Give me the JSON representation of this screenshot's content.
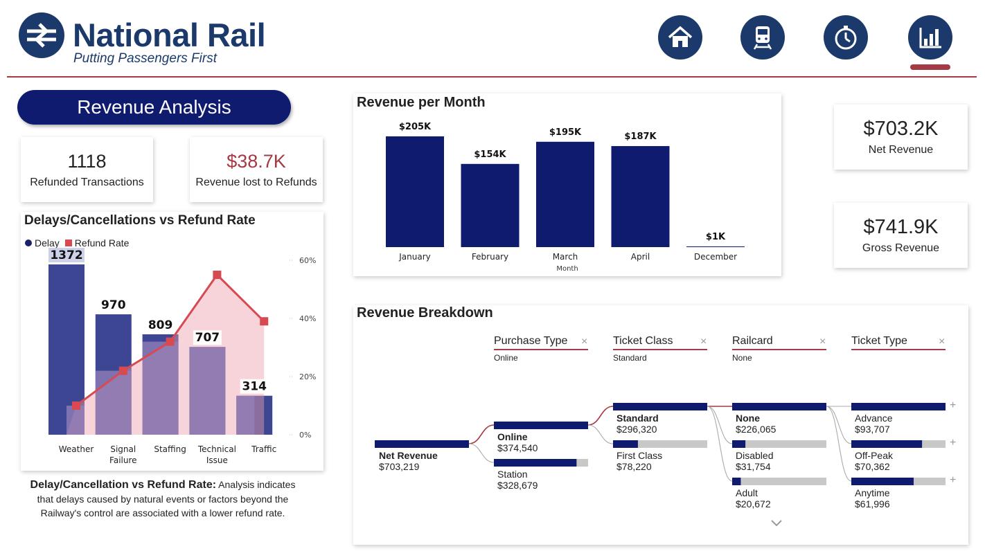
{
  "header": {
    "brand_name": "National Rail",
    "tagline": "Putting Passengers First",
    "nav": [
      "home-icon",
      "train-icon",
      "stopwatch-icon",
      "bar-chart-icon"
    ],
    "active_nav": "bar-chart-icon",
    "colors": {
      "brand_navy": "#1b3a6b",
      "accent_red": "#a33a44",
      "bar_navy": "#0f1b6e"
    }
  },
  "section_title": "Revenue Analysis",
  "kpis": {
    "refunded_transactions": {
      "value": "1118",
      "label": "Refunded Transactions"
    },
    "revenue_lost": {
      "value": "$38.7K",
      "label": "Revenue lost to Refunds"
    },
    "net_revenue": {
      "value": "$703.2K",
      "label": "Net Revenue"
    },
    "gross_revenue": {
      "value": "$741.9K",
      "label": "Gross Revenue"
    }
  },
  "analysis_note": {
    "heading": "Delay/Cancellation vs Refund Rate:",
    "body": "Analysis indicates that delays caused by natural events or factors beyond the Railway's control are associated with a lower refund rate."
  },
  "chart_data": [
    {
      "id": "revenue-per-month",
      "type": "bar",
      "title": "Revenue per Month",
      "xlabel": "Month",
      "categories": [
        "January",
        "February",
        "March",
        "April",
        "December"
      ],
      "values": [
        205,
        154,
        195,
        187,
        1
      ],
      "value_labels": [
        "$205K",
        "$154K",
        "$195K",
        "$187K",
        "$1K"
      ],
      "unit": "$K",
      "ylim": [
        0,
        205
      ],
      "color": "#0f1b6e",
      "grid": false
    },
    {
      "id": "delays-vs-refund",
      "type": "bar",
      "title": "Delays/Cancellations vs Refund Rate",
      "legend": [
        "Delay",
        "Refund Rate"
      ],
      "legend_position": "top-left",
      "categories": [
        "Weather",
        "Signal Failure",
        "Staffing",
        "Technical Issue",
        "Traffic"
      ],
      "category_lines": [
        [
          "Weather"
        ],
        [
          "Signal",
          "Failure"
        ],
        [
          "Staffing"
        ],
        [
          "Technical",
          "Issue"
        ],
        [
          "Traffic"
        ]
      ],
      "series": [
        {
          "name": "Delay",
          "values": [
            1372,
            970,
            809,
            707,
            314
          ],
          "color": "#3d4693"
        },
        {
          "name": "Refund Rate",
          "values": [
            10,
            22,
            32,
            55,
            39
          ],
          "color": "#d84a52",
          "axis": "right",
          "unit": "%"
        }
      ],
      "y2_ticks": [
        "0%",
        "20%",
        "40%",
        "60%"
      ],
      "y2lim": [
        0,
        60
      ]
    }
  ],
  "revenue_breakdown": {
    "title": "Revenue Breakdown",
    "filters": [
      {
        "label": "Purchase Type",
        "value": "Online"
      },
      {
        "label": "Ticket Class",
        "value": "Standard"
      },
      {
        "label": "Railcard",
        "value": "None"
      },
      {
        "label": "Ticket Type",
        "value": ""
      }
    ],
    "root": {
      "label": "Net Revenue",
      "value": "$703,219",
      "amount": 703219
    },
    "levels": [
      [
        {
          "label": "Online",
          "value": "$374,540",
          "amount": 374540,
          "selected": true
        },
        {
          "label": "Station",
          "value": "$328,679",
          "amount": 328679
        }
      ],
      [
        {
          "label": "Standard",
          "value": "$296,320",
          "amount": 296320,
          "selected": true
        },
        {
          "label": "First Class",
          "value": "$78,220",
          "amount": 78220
        }
      ],
      [
        {
          "label": "None",
          "value": "$226,065",
          "amount": 226065,
          "selected": true
        },
        {
          "label": "Disabled",
          "value": "$31,754",
          "amount": 31754
        },
        {
          "label": "Adult",
          "value": "$20,672",
          "amount": 20672
        }
      ],
      [
        {
          "label": "Advance",
          "value": "$93,707",
          "amount": 93707
        },
        {
          "label": "Off-Peak",
          "value": "$70,362",
          "amount": 70362
        },
        {
          "label": "Anytime",
          "value": "$61,996",
          "amount": 61996
        }
      ]
    ]
  }
}
